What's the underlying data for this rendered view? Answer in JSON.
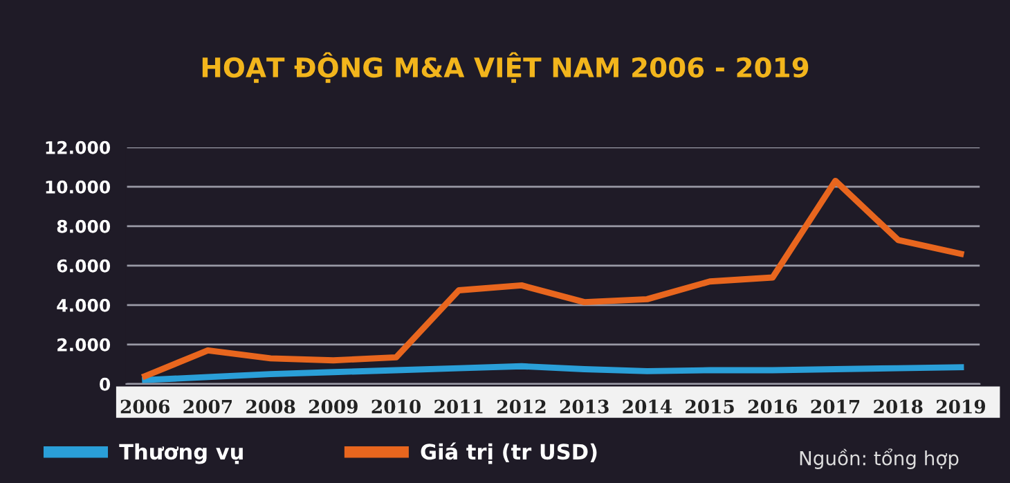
{
  "chart_data": {
    "type": "line",
    "title": "HOẠT ĐỘNG M&A VIỆT NAM 2006 - 2019",
    "categories": [
      "2006",
      "2007",
      "2008",
      "2009",
      "2010",
      "2011",
      "2012",
      "2013",
      "2014",
      "2015",
      "2016",
      "2017",
      "2018",
      "2019"
    ],
    "series": [
      {
        "name": "Thương vụ",
        "color": "#2a9fd8",
        "values": [
          200,
          350,
          500,
          600,
          700,
          800,
          900,
          750,
          650,
          700,
          700,
          750,
          800,
          850
        ]
      },
      {
        "name": "Giá trị (tr USD)",
        "color": "#e8661e",
        "values": [
          400,
          1700,
          1300,
          1200,
          1350,
          4750,
          5000,
          4150,
          4300,
          5200,
          5400,
          10300,
          7300,
          6600
        ]
      }
    ],
    "ylim": [
      0,
      12000
    ],
    "yticks": [
      {
        "value": 0,
        "label": "0"
      },
      {
        "value": 2000,
        "label": "2.000"
      },
      {
        "value": 4000,
        "label": "4.000"
      },
      {
        "value": 6000,
        "label": "6.000"
      },
      {
        "value": 8000,
        "label": "8.000"
      },
      {
        "value": 10000,
        "label": "10.000"
      },
      {
        "value": 12000,
        "label": "12.000"
      }
    ],
    "grid": "y",
    "legend": "bottom",
    "marker": "none",
    "line_style": "solid",
    "annotations": [
      "Nguồn: tổng hợp"
    ]
  }
}
